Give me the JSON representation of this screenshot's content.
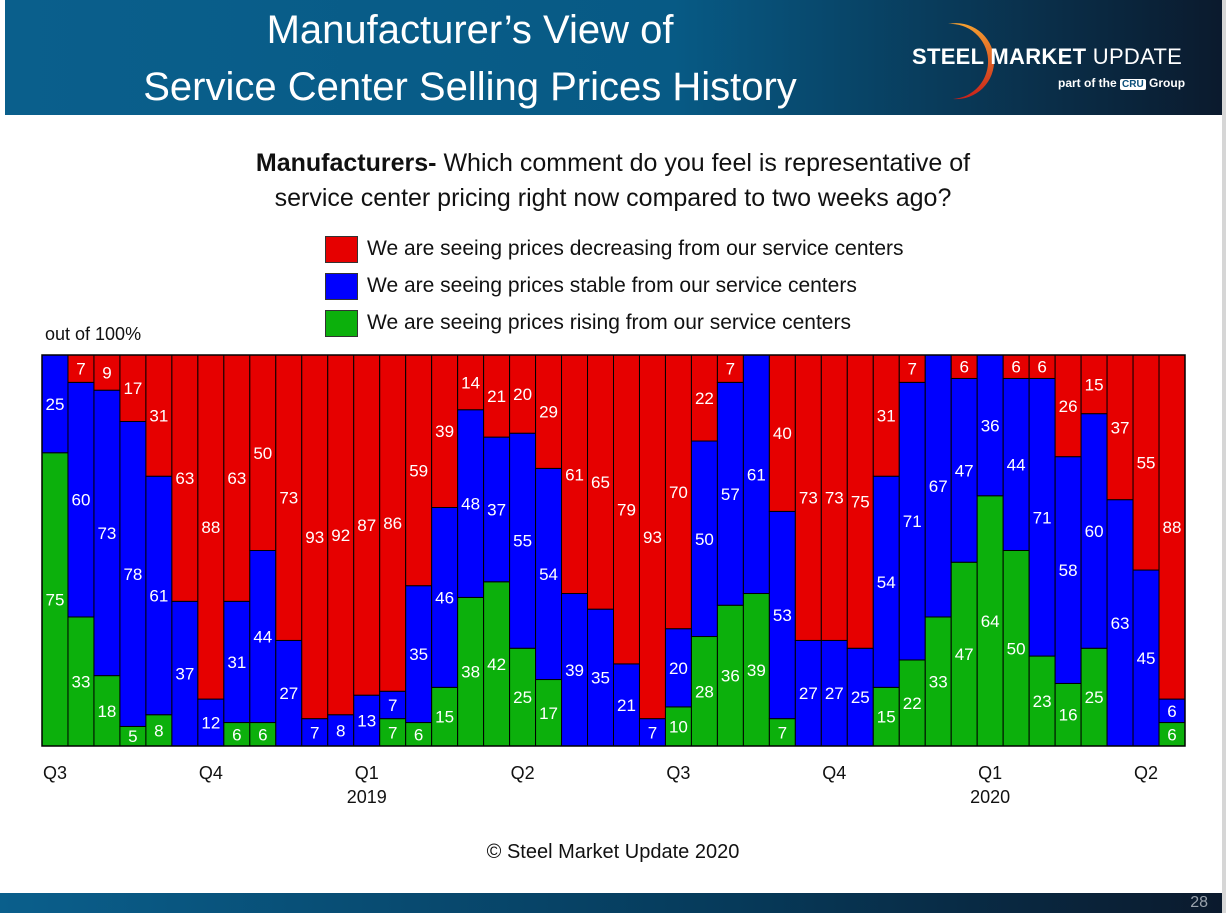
{
  "header": {
    "title_line1": "Manufacturer’s View of",
    "title_line2": "Service Center Selling Prices History",
    "logo_bold": "STEEL MARKET",
    "logo_light": "UPDATE",
    "logo_sub_prefix": "part of the",
    "logo_sub_badge": "CRU",
    "logo_sub_suffix": "Group"
  },
  "question": {
    "bold": "Manufacturers-",
    "line1": " Which comment do you feel is representative of",
    "line2": "service center pricing right now compared to two weeks ago?"
  },
  "unit_label": "out of 100%",
  "copyright": "© Steel Market Update 2020",
  "page_number": "28",
  "colors": {
    "decreasing": "#e60000",
    "stable": "#0000ff",
    "rising": "#0cb00c"
  },
  "chart_data": {
    "type": "bar",
    "stacked": true,
    "ylim": [
      0,
      100
    ],
    "grid": false,
    "legend_placement": "top",
    "series": [
      {
        "name": "We are seeing prices rising from our service centers",
        "color": "#0cb00c",
        "values": [
          75,
          33,
          18,
          5,
          8,
          0,
          0,
          6,
          6,
          0,
          0,
          0,
          0,
          7,
          6,
          15,
          38,
          42,
          25,
          17,
          0,
          0,
          0,
          0,
          10,
          28,
          36,
          39,
          7,
          0,
          0,
          0,
          15,
          22,
          33,
          47,
          64,
          50,
          23,
          16,
          25,
          0,
          0,
          6
        ]
      },
      {
        "name": "We are seeing prices stable from our service centers",
        "color": "#0000ff",
        "values": [
          25,
          60,
          73,
          78,
          61,
          37,
          12,
          31,
          44,
          27,
          7,
          8,
          13,
          7,
          35,
          46,
          48,
          37,
          55,
          54,
          39,
          35,
          21,
          7,
          20,
          50,
          57,
          61,
          53,
          27,
          27,
          25,
          54,
          71,
          67,
          47,
          36,
          44,
          71,
          58,
          60,
          63,
          45,
          6
        ]
      },
      {
        "name": "We are seeing prices decreasing from our service centers",
        "color": "#e60000",
        "values": [
          0,
          7,
          9,
          17,
          31,
          63,
          88,
          63,
          50,
          73,
          93,
          92,
          87,
          86,
          59,
          39,
          14,
          21,
          20,
          29,
          61,
          65,
          79,
          93,
          70,
          22,
          7,
          0,
          40,
          73,
          73,
          75,
          31,
          7,
          0,
          6,
          0,
          6,
          6,
          26,
          15,
          37,
          55,
          88
        ]
      }
    ],
    "quarter_labels": [
      {
        "bar": 1,
        "label": "Q3",
        "year": ""
      },
      {
        "bar": 7,
        "label": "Q4",
        "year": ""
      },
      {
        "bar": 13,
        "label": "Q1",
        "year": "2019"
      },
      {
        "bar": 19,
        "label": "Q2",
        "year": ""
      },
      {
        "bar": 25,
        "label": "Q3",
        "year": ""
      },
      {
        "bar": 31,
        "label": "Q4",
        "year": ""
      },
      {
        "bar": 37,
        "label": "Q1",
        "year": "2020"
      },
      {
        "bar": 43,
        "label": "Q2",
        "year": ""
      }
    ]
  }
}
